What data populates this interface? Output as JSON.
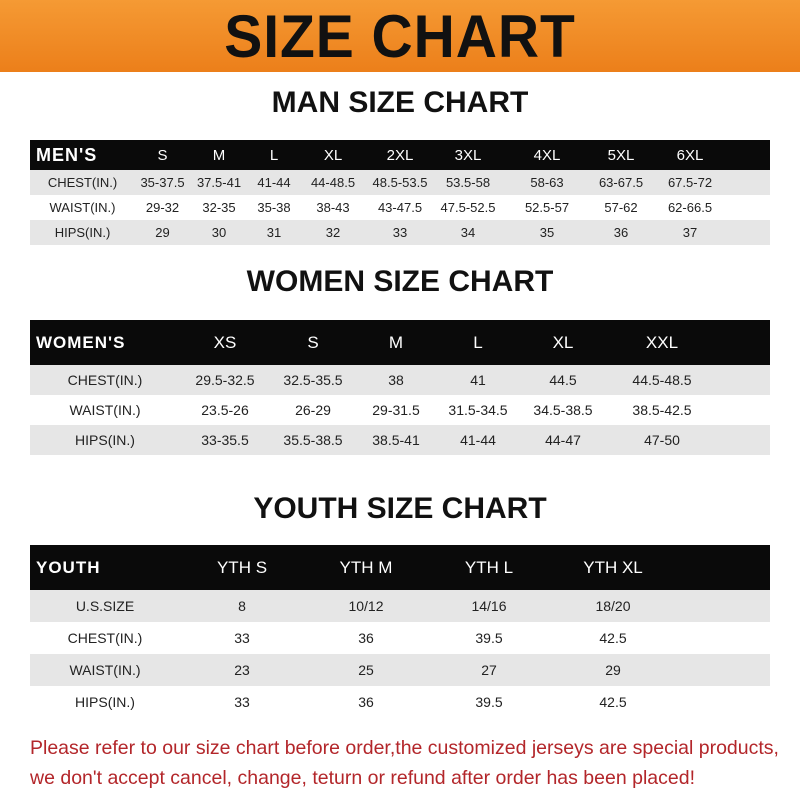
{
  "banner": {
    "title": "SIZE CHART",
    "color": "#f08a24"
  },
  "men": {
    "title": "MAN SIZE CHART",
    "header": [
      "MEN'S",
      "S",
      "M",
      "L",
      "XL",
      "2XL",
      "3XL",
      "4XL",
      "5XL",
      "6XL"
    ],
    "rows": [
      [
        "CHEST(IN.)",
        "35-37.5",
        "37.5-41",
        "41-44",
        "44-48.5",
        "48.5-53.5",
        "53.5-58",
        "58-63",
        "63-67.5",
        "67.5-72"
      ],
      [
        "WAIST(IN.)",
        "29-32",
        "32-35",
        "35-38",
        "38-43",
        "43-47.5",
        "47.5-52.5",
        "52.5-57",
        "57-62",
        "62-66.5"
      ],
      [
        "HIPS(IN.)",
        "29",
        "30",
        "31",
        "32",
        "33",
        "34",
        "35",
        "36",
        "37"
      ]
    ]
  },
  "women": {
    "title": "WOMEN SIZE CHART",
    "header": [
      "WOMEN'S",
      "XS",
      "S",
      "M",
      "L",
      "XL",
      "XXL"
    ],
    "rows": [
      [
        "CHEST(IN.)",
        "29.5-32.5",
        "32.5-35.5",
        "38",
        "41",
        "44.5",
        "44.5-48.5"
      ],
      [
        "WAIST(IN.)",
        "23.5-26",
        "26-29",
        "29-31.5",
        "31.5-34.5",
        "34.5-38.5",
        "38.5-42.5"
      ],
      [
        "HIPS(IN.)",
        "33-35.5",
        "35.5-38.5",
        "38.5-41",
        "41-44",
        "44-47",
        "47-50"
      ]
    ]
  },
  "youth": {
    "title": "YOUTH SIZE CHART",
    "header": [
      "YOUTH",
      "YTH S",
      "YTH M",
      "YTH L",
      "YTH XL"
    ],
    "rows": [
      [
        "U.S.SIZE",
        "8",
        "10/12",
        "14/16",
        "18/20"
      ],
      [
        "CHEST(IN.)",
        "33",
        "36",
        "39.5",
        "42.5"
      ],
      [
        "WAIST(IN.)",
        "23",
        "25",
        "27",
        "29"
      ],
      [
        "HIPS(IN.)",
        "33",
        "36",
        "39.5",
        "42.5"
      ]
    ]
  },
  "note": {
    "line1": "Please refer to our size chart before order,the customized jerseys are special products,",
    "line2": "we don't accept cancel, change, teturn or refund after order has been placed!",
    "color": "#b3262a"
  }
}
